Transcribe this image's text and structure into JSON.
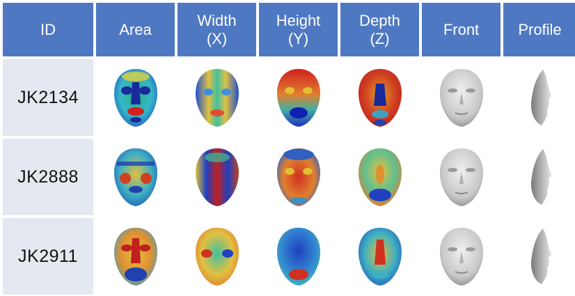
{
  "header": {
    "id": "ID",
    "area": "Area",
    "width_1": "Width",
    "width_2": "(X)",
    "height_1": "Height",
    "height_2": "(Y)",
    "depth_1": "Depth",
    "depth_2": "(Z)",
    "front": "Front",
    "profile": "Profile"
  },
  "rows": [
    {
      "id": "JK2134"
    },
    {
      "id": "JK2888"
    },
    {
      "id": "JK2911"
    }
  ],
  "colors": {
    "header_bg": "#4f78c2",
    "id_bg": "#e4e8f0"
  }
}
